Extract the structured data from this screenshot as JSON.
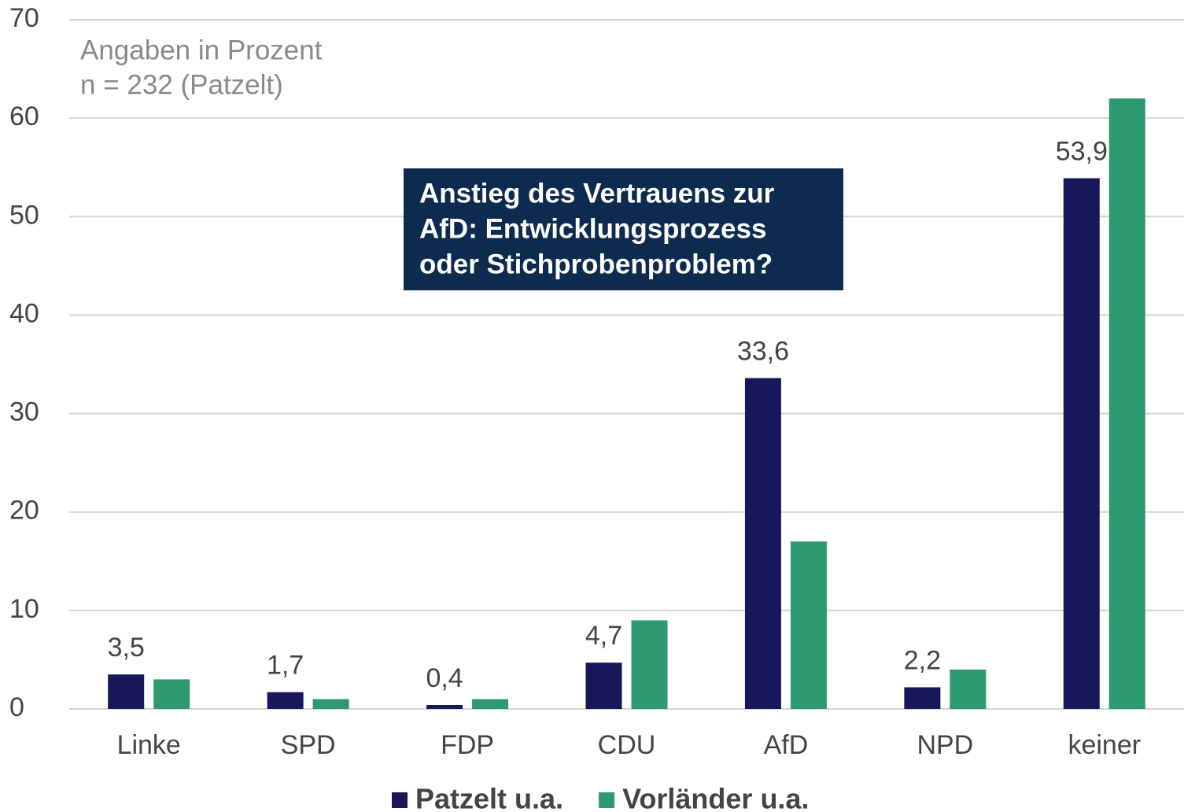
{
  "chart_data": {
    "type": "bar",
    "annotations": [
      "Angaben in Prozent",
      "n = 232 (Patzelt)"
    ],
    "callout": [
      "Anstieg des Vertrauens zur",
      "AfD: Entwicklungsprozess",
      "oder Stichprobenproblem?"
    ],
    "categories": [
      "Linke",
      "SPD",
      "FDP",
      "CDU",
      "AfD",
      "NPD",
      "keiner"
    ],
    "series": [
      {
        "name": "Patzelt u.a.",
        "color": "#16185a",
        "values": [
          3.5,
          1.7,
          0.4,
          4.7,
          33.6,
          2.2,
          53.9
        ],
        "value_labels": [
          "3,5",
          "1,7",
          "0,4",
          "4,7",
          "33,6",
          "2,2",
          "53,9"
        ]
      },
      {
        "name": "Vorländer u.a.",
        "color": "#2e9870",
        "values": [
          3,
          1,
          1,
          9,
          17,
          4,
          62
        ]
      }
    ],
    "ylim": [
      0,
      70
    ],
    "yticks": [
      0,
      10,
      20,
      30,
      40,
      50,
      60,
      70
    ],
    "grid": true,
    "legend": "bottom"
  }
}
